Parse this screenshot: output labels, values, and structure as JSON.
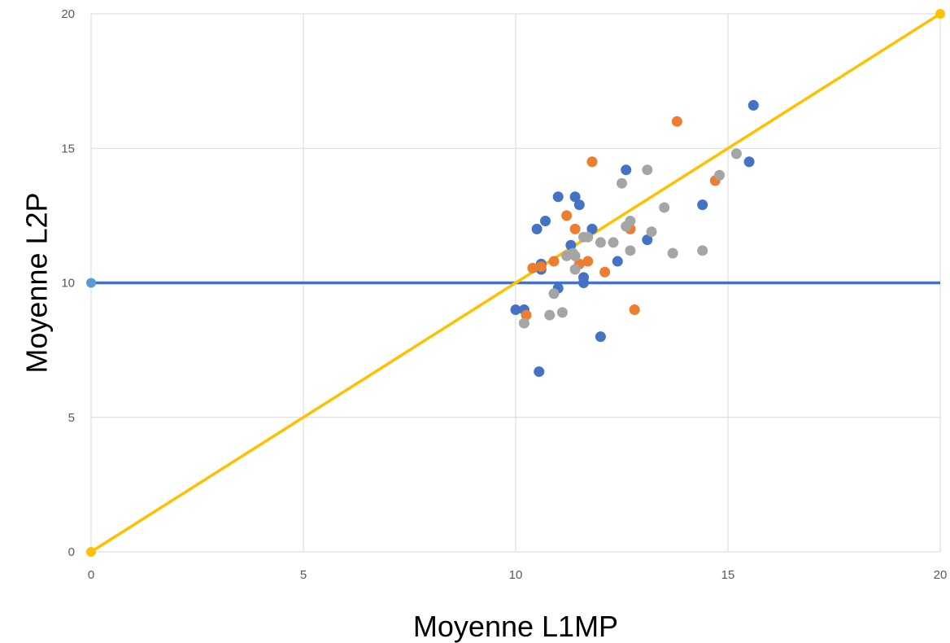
{
  "chart_data": {
    "type": "scatter",
    "title": "",
    "xlabel": "Moyenne L1MP",
    "ylabel": "Moyenne L2P",
    "xlim": [
      0,
      20
    ],
    "ylim": [
      0,
      20
    ],
    "xticks": [
      "0",
      "5",
      "10",
      "15",
      "20"
    ],
    "yticks": [
      "0",
      "5",
      "10",
      "15",
      "20"
    ],
    "grid": true,
    "legend": "none",
    "series": [
      {
        "color": "#4472c4",
        "points": [
          [
            10.0,
            9.0
          ],
          [
            10.2,
            9.0
          ],
          [
            10.5,
            12.0
          ],
          [
            10.6,
            10.7
          ],
          [
            10.6,
            10.5
          ],
          [
            10.55,
            6.7
          ],
          [
            10.7,
            12.3
          ],
          [
            11.0,
            13.2
          ],
          [
            11.0,
            9.8
          ],
          [
            11.3,
            11.4
          ],
          [
            11.4,
            13.2
          ],
          [
            11.5,
            12.9
          ],
          [
            11.6,
            10.2
          ],
          [
            11.6,
            10.0
          ],
          [
            11.8,
            12.0
          ],
          [
            12.0,
            8.0
          ],
          [
            12.4,
            10.8
          ],
          [
            12.6,
            14.2
          ],
          [
            13.1,
            11.6
          ],
          [
            14.4,
            12.9
          ],
          [
            15.5,
            14.5
          ],
          [
            15.6,
            16.6
          ]
        ]
      },
      {
        "color": "#ed7d31",
        "points": [
          [
            10.25,
            8.8
          ],
          [
            10.4,
            10.55
          ],
          [
            10.6,
            10.6
          ],
          [
            10.9,
            10.8
          ],
          [
            11.2,
            12.5
          ],
          [
            11.4,
            12.0
          ],
          [
            11.5,
            10.7
          ],
          [
            11.7,
            10.8
          ],
          [
            11.8,
            14.5
          ],
          [
            12.1,
            10.4
          ],
          [
            12.7,
            12.0
          ],
          [
            12.8,
            9.0
          ],
          [
            13.8,
            16.0
          ],
          [
            14.7,
            13.8
          ]
        ]
      },
      {
        "color": "#a5a5a5",
        "points": [
          [
            10.2,
            8.5
          ],
          [
            10.8,
            8.8
          ],
          [
            10.9,
            9.6
          ],
          [
            11.1,
            8.9
          ],
          [
            11.2,
            11.0
          ],
          [
            11.35,
            11.1
          ],
          [
            11.4,
            11.0
          ],
          [
            11.4,
            10.5
          ],
          [
            11.6,
            11.7
          ],
          [
            11.7,
            11.7
          ],
          [
            12.0,
            11.5
          ],
          [
            12.3,
            11.5
          ],
          [
            12.5,
            13.7
          ],
          [
            12.6,
            12.1
          ],
          [
            12.7,
            12.3
          ],
          [
            12.7,
            11.2
          ],
          [
            13.1,
            14.2
          ],
          [
            13.2,
            11.9
          ],
          [
            13.5,
            12.8
          ],
          [
            13.7,
            11.1
          ],
          [
            14.4,
            11.2
          ],
          [
            14.8,
            14.0
          ],
          [
            15.2,
            14.8
          ]
        ]
      }
    ],
    "reference_lines": [
      {
        "color": "#4472c4",
        "from": [
          0,
          10
        ],
        "to": [
          20,
          10
        ],
        "endpoint_marker": "start",
        "marker_color": "#5b9bd5"
      },
      {
        "color": "#ffc000",
        "from": [
          0,
          0
        ],
        "to": [
          20,
          20
        ],
        "endpoint_marker": "both",
        "marker_color": "#ffc000"
      }
    ]
  }
}
